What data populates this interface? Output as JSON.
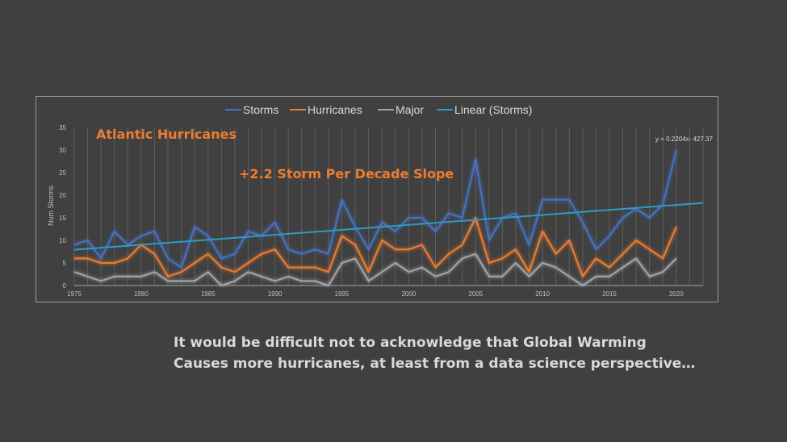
{
  "colors": {
    "background": "#404040",
    "storms": "#4472C4",
    "hurricanes": "#ED7D31",
    "major": "#A5A5A5",
    "trend": "#2E9BC6",
    "annotation": "#ED7D31",
    "caption": "#D9D9D9"
  },
  "caption": {
    "line1": "It would be difficult not to acknowledge that Global Warming",
    "line2": "Causes more hurricanes, at least from a data science perspective…"
  },
  "chart_data": {
    "type": "line",
    "ylabel": "Num Storms",
    "ylim": [
      0,
      35
    ],
    "yticks": [
      0,
      5,
      10,
      15,
      20,
      25,
      30,
      35
    ],
    "xlim": [
      1975,
      2022
    ],
    "xticks": [
      1975,
      1980,
      1985,
      1990,
      1995,
      2000,
      2005,
      2010,
      2015,
      2020
    ],
    "grid": {
      "vertical_yearly": true
    },
    "legend": {
      "position": "top",
      "entries": [
        "Storms",
        "Hurricanes",
        "Major",
        "Linear (Storms)"
      ]
    },
    "annotations": {
      "chart_label": "Atlantic Hurricanes",
      "slope_label": "+2.2 Storm Per Decade Slope",
      "equation": "y = 0.2204x- 427.37"
    },
    "x": [
      1975,
      1976,
      1977,
      1978,
      1979,
      1980,
      1981,
      1982,
      1983,
      1984,
      1985,
      1986,
      1987,
      1988,
      1989,
      1990,
      1991,
      1992,
      1993,
      1994,
      1995,
      1996,
      1997,
      1998,
      1999,
      2000,
      2001,
      2002,
      2003,
      2004,
      2005,
      2006,
      2007,
      2008,
      2009,
      2010,
      2011,
      2012,
      2013,
      2014,
      2015,
      2016,
      2017,
      2018,
      2019,
      2020
    ],
    "series": [
      {
        "name": "Storms",
        "color": "#4472C4",
        "values": [
          9,
          10,
          6,
          12,
          9,
          11,
          12,
          6,
          4,
          13,
          11,
          6,
          7,
          12,
          11,
          14,
          8,
          7,
          8,
          7,
          19,
          13,
          8,
          14,
          12,
          15,
          15,
          12,
          16,
          15,
          28,
          10,
          15,
          16,
          9,
          19,
          19,
          19,
          14,
          8,
          11,
          15,
          17,
          15,
          18,
          30
        ]
      },
      {
        "name": "Hurricanes",
        "color": "#ED7D31",
        "values": [
          6,
          6,
          5,
          5,
          6,
          9,
          7,
          2,
          3,
          5,
          7,
          4,
          3,
          5,
          7,
          8,
          4,
          4,
          4,
          3,
          11,
          9,
          3,
          10,
          8,
          8,
          9,
          4,
          7,
          9,
          15,
          5,
          6,
          8,
          3,
          12,
          7,
          10,
          2,
          6,
          4,
          7,
          10,
          8,
          6,
          13
        ]
      },
      {
        "name": "Major",
        "color": "#A5A5A5",
        "values": [
          3,
          2,
          1,
          2,
          2,
          2,
          3,
          1,
          1,
          1,
          3,
          0,
          1,
          3,
          2,
          1,
          2,
          1,
          1,
          0,
          5,
          6,
          1,
          3,
          5,
          3,
          4,
          2,
          3,
          6,
          7,
          2,
          2,
          5,
          2,
          5,
          4,
          2,
          0,
          2,
          2,
          4,
          6,
          2,
          3,
          6
        ]
      },
      {
        "name": "Linear (Storms)",
        "color": "#2E9BC6",
        "trend": true,
        "slope": 0.2204,
        "intercept": -427.37,
        "x_range": [
          1975,
          2022
        ]
      }
    ]
  }
}
